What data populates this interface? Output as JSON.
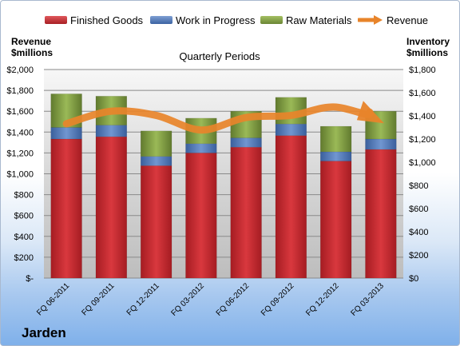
{
  "legend": {
    "finished_goods": "Finished Goods",
    "work_in_progress": "Work in Progress",
    "raw_materials": "Raw Materials",
    "revenue": "Revenue"
  },
  "left_axis_title": {
    "line1": "Revenue",
    "line2": "$millions"
  },
  "right_axis_title": {
    "line1": "Inventory",
    "line2": "$millions"
  },
  "company": "Jarden",
  "colors": {
    "finished_goods": "#c0272d",
    "work_in_progress": "#4a74b4",
    "raw_materials": "#77933c",
    "revenue": "#e8842a"
  },
  "chart_data": {
    "type": "bar",
    "title": "Quarterly Periods",
    "categories": [
      "FQ 06-2011",
      "FQ 09-2011",
      "FQ 12-2011",
      "FQ 03-2012",
      "FQ 06-2012",
      "FQ 09-2012",
      "FQ 12-2012",
      "FQ 03-2013"
    ],
    "stacked": true,
    "series": [
      {
        "name": "Finished Goods",
        "axis": "right",
        "values": [
          1200,
          1220,
          970,
          1080,
          1130,
          1230,
          1010,
          1110
        ]
      },
      {
        "name": "Work in Progress",
        "axis": "right",
        "values": [
          100,
          100,
          80,
          80,
          80,
          100,
          80,
          90
        ]
      },
      {
        "name": "Raw Materials",
        "axis": "right",
        "values": [
          290,
          250,
          220,
          220,
          230,
          230,
          220,
          240
        ]
      },
      {
        "name": "Revenue",
        "axis": "left",
        "type": "line",
        "values": [
          1480,
          1600,
          1560,
          1420,
          1540,
          1560,
          1640,
          1500
        ]
      }
    ],
    "left_axis": {
      "min": 0,
      "max": 2000,
      "step": 200,
      "tick_labels": [
        "$-",
        "$200",
        "$400",
        "$600",
        "$800",
        "$1,000",
        "$1,200",
        "$1,400",
        "$1,600",
        "$1,800",
        "$2,000"
      ]
    },
    "right_axis": {
      "min": 0,
      "max": 1800,
      "step": 200,
      "tick_labels": [
        "$0",
        "$200",
        "$400",
        "$600",
        "$800",
        "$1,000",
        "$1,200",
        "$1,400",
        "$1,600",
        "$1,800"
      ]
    },
    "grid": true,
    "legend_position": "top"
  }
}
